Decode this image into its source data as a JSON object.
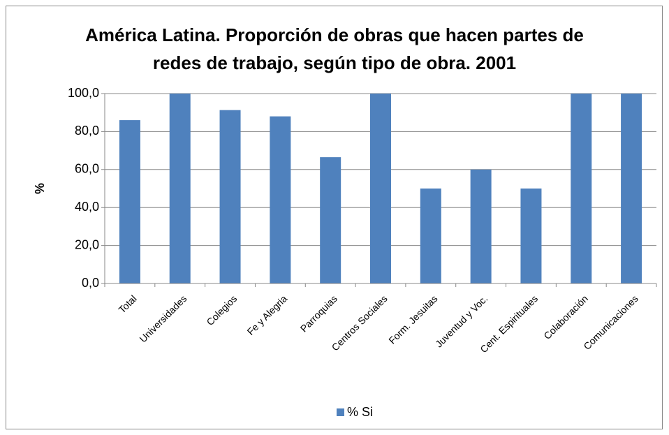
{
  "chart_data": {
    "type": "bar",
    "title": "América Latina.  Proporción de obras que hacen partes de redes de trabajo, según tipo de obra. 2001",
    "ylabel": "%",
    "categories": [
      "Total",
      "Universidades",
      "Colegios",
      "Fe y Alegria",
      "Parroquias",
      "Centros Sociales",
      "Form. Jesuitas",
      "Juventud y Voc.",
      "Cent. Espirituales",
      "Colaboración",
      "Comunicaciones"
    ],
    "series": [
      {
        "name": "% Si",
        "color": "#4f81bd",
        "values": [
          86,
          100,
          91.3,
          88,
          66.5,
          100,
          50,
          60,
          50,
          100,
          100
        ]
      }
    ],
    "ylim": [
      0,
      100
    ],
    "yticks": [
      {
        "value": 0,
        "label": "0,0"
      },
      {
        "value": 20,
        "label": "20,0"
      },
      {
        "value": 40,
        "label": "40,0"
      },
      {
        "value": 60,
        "label": "60,0"
      },
      {
        "value": 80,
        "label": "80,0"
      },
      {
        "value": 100,
        "label": "100,0"
      }
    ],
    "grid": true,
    "legend": "bottom"
  }
}
